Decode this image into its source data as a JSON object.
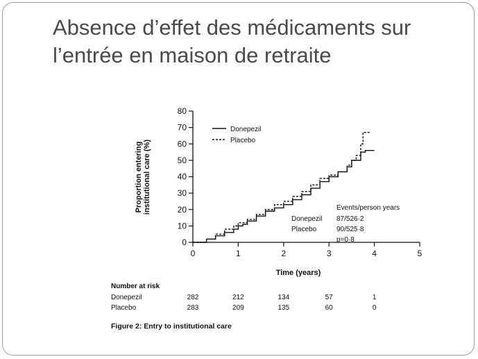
{
  "slide": {
    "title_line1": "Absence d’effet des médicaments sur",
    "title_line2": "l’entrée en maison de retraite"
  },
  "chart_data": {
    "type": "line",
    "title": "",
    "xlabel": "Time (years)",
    "ylabel_line1": "Proportion entering",
    "ylabel_line2": "institutional care (%)",
    "xlim": [
      0,
      5
    ],
    "ylim": [
      0,
      80
    ],
    "xticks": [
      "0",
      "1",
      "2",
      "3",
      "4",
      "5"
    ],
    "yticks": [
      "0",
      "10",
      "20",
      "30",
      "40",
      "50",
      "60",
      "70",
      "80"
    ],
    "grid": false,
    "legend_position": "top-left",
    "series": [
      {
        "name": "Donepezil",
        "style": "solid",
        "x": [
          0,
          0.3,
          0.5,
          0.7,
          0.9,
          1.0,
          1.1,
          1.2,
          1.4,
          1.6,
          1.8,
          2.0,
          2.2,
          2.4,
          2.6,
          2.8,
          3.0,
          3.2,
          3.4,
          3.5,
          3.6,
          3.7,
          3.8,
          4.0
        ],
        "y": [
          0,
          2,
          4,
          6,
          8,
          10,
          11,
          13,
          16,
          19,
          21,
          23,
          26,
          29,
          33,
          37,
          40,
          43,
          46,
          50,
          50,
          55,
          56,
          56
        ]
      },
      {
        "name": "Placebo",
        "style": "dashed",
        "x": [
          0,
          0.3,
          0.5,
          0.7,
          0.9,
          1.0,
          1.2,
          1.4,
          1.6,
          1.8,
          2.0,
          2.2,
          2.4,
          2.6,
          2.8,
          3.0,
          3.2,
          3.4,
          3.5,
          3.6,
          3.7,
          3.75,
          3.8,
          3.9
        ],
        "y": [
          0,
          2,
          5,
          8,
          10,
          12,
          14,
          17,
          20,
          23,
          25,
          28,
          31,
          35,
          39,
          41,
          43,
          47,
          50,
          53,
          60,
          67,
          67,
          67
        ]
      }
    ],
    "stats_header": "Events/person years",
    "stats_rows": [
      {
        "label": "Donepezil",
        "value": "87/526·2"
      },
      {
        "label": "Placebo",
        "value": "90/525·8"
      },
      {
        "label": "",
        "value": "p=0·8"
      }
    ],
    "risk_table": {
      "title": "Number at risk",
      "rows": [
        {
          "label": "Donepezil",
          "values": [
            "282",
            "212",
            "134",
            "57",
            "1"
          ]
        },
        {
          "label": "Placebo",
          "values": [
            "283",
            "209",
            "135",
            "60",
            "0"
          ]
        }
      ]
    },
    "caption": "Figure 2: Entry to institutional care"
  }
}
